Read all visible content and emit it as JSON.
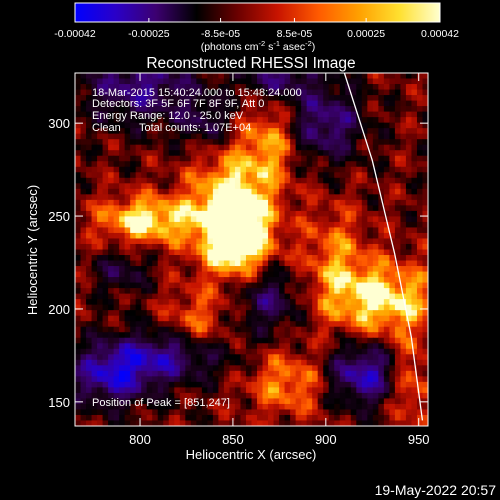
{
  "colorbar": {
    "tick_labels": [
      "-0.00042",
      "-0.00025",
      "-8.5e-05",
      "8.5e-05",
      "0.00025",
      "0.00042"
    ],
    "tick_values": [
      -0.00042,
      -0.00025,
      -8.5e-05,
      8.5e-05,
      0.00025,
      0.00042
    ],
    "range": [
      -0.00042,
      0.00042
    ],
    "units_main": "(photons cm",
    "units_exp1": "-2",
    "units_mid": " s",
    "units_exp2": "-1",
    "units_end": " asec",
    "units_exp3": "-2",
    "units_close": ")",
    "colors": [
      "#0000ff",
      "#2a00c8",
      "#3c0070",
      "#000000",
      "#6a0000",
      "#c81400",
      "#ff5a00",
      "#ffa000",
      "#ffe030",
      "#ffffd0"
    ]
  },
  "chart_data": {
    "type": "heatmap",
    "title": "Reconstructed RHESSI Image",
    "xlabel": "Heliocentric X (arcsec)",
    "ylabel": "Heliocentric Y (arcsec)",
    "xlim": [
      765,
      955
    ],
    "ylim": [
      137,
      327
    ],
    "x_ticks": [
      800,
      850,
      900,
      950
    ],
    "x_tick_labels": [
      "800",
      "850",
      "900",
      "950"
    ],
    "y_ticks": [
      150,
      200,
      250,
      300
    ],
    "y_tick_labels": [
      "150",
      "200",
      "250",
      "300"
    ],
    "limb_curve": [
      [
        910,
        327
      ],
      [
        925,
        280
      ],
      [
        937,
        230
      ],
      [
        946,
        185
      ],
      [
        952,
        140
      ]
    ],
    "bright_regions": [
      {
        "x": 850,
        "y": 255,
        "sx": 16,
        "sy": 20,
        "amp": 1.0
      },
      {
        "x": 852,
        "y": 235,
        "sx": 12,
        "sy": 12,
        "amp": 0.75
      },
      {
        "x": 803,
        "y": 248,
        "sx": 18,
        "sy": 9,
        "amp": 0.85
      },
      {
        "x": 870,
        "y": 290,
        "sx": 10,
        "sy": 14,
        "amp": 0.55
      },
      {
        "x": 930,
        "y": 205,
        "sx": 22,
        "sy": 14,
        "amp": 0.85
      },
      {
        "x": 905,
        "y": 230,
        "sx": 12,
        "sy": 18,
        "amp": 0.45
      },
      {
        "x": 830,
        "y": 190,
        "sx": 12,
        "sy": 14,
        "amp": 0.5
      },
      {
        "x": 880,
        "y": 160,
        "sx": 16,
        "sy": 12,
        "amp": 0.55
      },
      {
        "x": 945,
        "y": 160,
        "sx": 8,
        "sy": 16,
        "amp": 0.5
      }
    ],
    "dark_regions": [
      {
        "x": 785,
        "y": 165,
        "sx": 16,
        "sy": 12,
        "amp": 0.9
      },
      {
        "x": 820,
        "y": 175,
        "sx": 20,
        "sy": 10,
        "amp": 0.8
      },
      {
        "x": 800,
        "y": 320,
        "sx": 22,
        "sy": 14,
        "amp": 0.7
      },
      {
        "x": 790,
        "y": 220,
        "sx": 10,
        "sy": 8,
        "amp": 0.45
      },
      {
        "x": 870,
        "y": 205,
        "sx": 12,
        "sy": 12,
        "amp": 0.6
      },
      {
        "x": 920,
        "y": 165,
        "sx": 14,
        "sy": 12,
        "amp": 0.9
      },
      {
        "x": 900,
        "y": 300,
        "sx": 14,
        "sy": 14,
        "amp": 0.7
      },
      {
        "x": 835,
        "y": 300,
        "sx": 10,
        "sy": 10,
        "amp": 0.45
      },
      {
        "x": 875,
        "y": 325,
        "sx": 14,
        "sy": 8,
        "amp": 0.6
      }
    ]
  },
  "annotations": {
    "time_range": "18-Mar-2015 15:40:24.000 to 15:48:24.000",
    "detectors": "Detectors: 3F 5F 6F 7F 8F 9F, Att 0",
    "energy_range": "Energy Range: 12.0 - 25.0 keV",
    "method": "Clean",
    "total_counts": "Total counts: 1.07E+04",
    "peak_position": "Position of Peak = [851,247]"
  },
  "footer": {
    "date_stamp": "19-May-2022 20:57"
  }
}
